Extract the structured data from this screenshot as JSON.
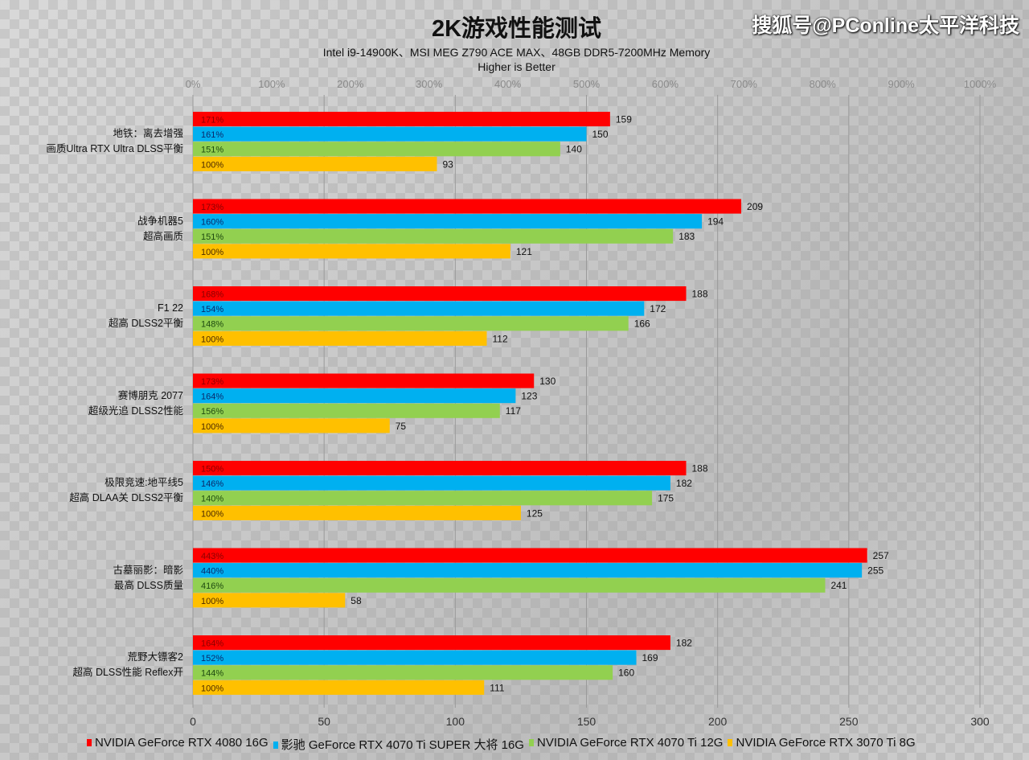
{
  "chart_data": {
    "type": "bar",
    "orientation": "horizontal",
    "title": "2K游戏性能测试",
    "subtitle": "Intel i9-14900K、MSI MEG Z790 ACE MAX、48GB DDR5-7200MHz Memory",
    "note": "Higher is Better",
    "categories": [
      [
        "地铁：离去增强",
        "画质Ultra  RTX Ultra  DLSS平衡"
      ],
      [
        "战争机器5",
        "超高画质"
      ],
      [
        "F1 22",
        "超高 DLSS2平衡"
      ],
      [
        "赛博朋克 2077",
        "超级光追 DLSS2性能"
      ],
      [
        "极限竞速:地平线5",
        "超高 DLAA关 DLSS2平衡"
      ],
      [
        "古墓丽影：暗影",
        "最高 DLSS质量"
      ],
      [
        "荒野大镖客2",
        "超高 DLSS性能  Reflex开"
      ]
    ],
    "series": [
      {
        "name": "NVIDIA GeForce RTX 4080 16G",
        "color": "#ff0000",
        "label_color": "#8b0000",
        "values": [
          159,
          209,
          188,
          130,
          188,
          257,
          182
        ],
        "percent_labels": [
          "171%",
          "173%",
          "168%",
          "173%",
          "150%",
          "443%",
          "164%"
        ]
      },
      {
        "name": "影驰 GeForce RTX 4070 Ti SUPER 大将 16G",
        "color": "#00b0f0",
        "label_color": "#0b2a6b",
        "values": [
          150,
          194,
          172,
          123,
          182,
          255,
          169
        ],
        "percent_labels": [
          "161%",
          "160%",
          "154%",
          "164%",
          "146%",
          "440%",
          "152%"
        ]
      },
      {
        "name": "NVIDIA GeForce RTX 4070 Ti 12G",
        "color": "#92d050",
        "label_color": "#1e4a10",
        "values": [
          140,
          183,
          166,
          117,
          175,
          241,
          160
        ],
        "percent_labels": [
          "151%",
          "151%",
          "148%",
          "156%",
          "140%",
          "416%",
          "144%"
        ]
      },
      {
        "name": "NVIDIA GeForce RTX 3070 Ti 8G",
        "color": "#ffc000",
        "label_color": "#4a2a00",
        "values": [
          93,
          121,
          112,
          75,
          125,
          58,
          111
        ],
        "percent_labels": [
          "100%",
          "100%",
          "100%",
          "100%",
          "100%",
          "100%",
          "100%"
        ]
      }
    ],
    "x_axis": {
      "range": [
        0,
        300
      ],
      "ticks": [
        "0",
        "50",
        "100",
        "150",
        "200",
        "250",
        "300"
      ]
    },
    "x2_axis": {
      "range": [
        0,
        1000
      ],
      "ticks": [
        "0%",
        "100%",
        "200%",
        "300%",
        "400%",
        "500%",
        "600%",
        "700%",
        "800%",
        "900%",
        "1000%"
      ]
    },
    "grid": true,
    "legend_position": "bottom"
  },
  "watermark": "搜狐号@PConline太平洋科技"
}
